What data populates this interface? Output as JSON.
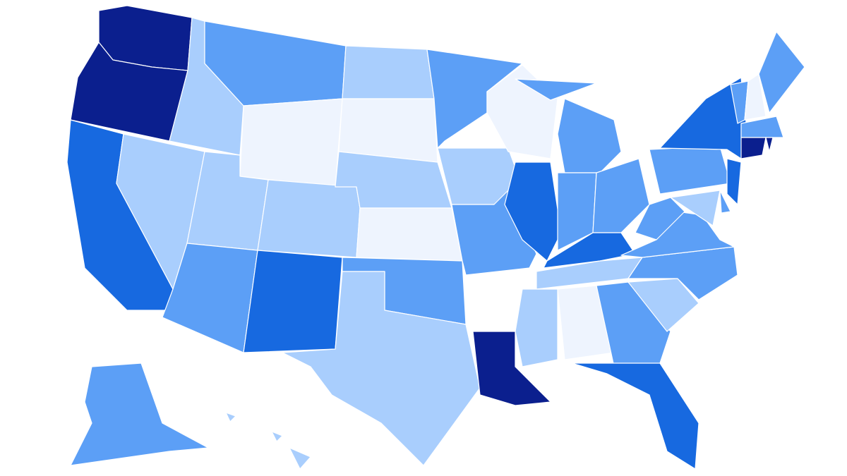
{
  "map": {
    "type": "choropleth",
    "stroke": "#ffffff",
    "regions": [
      {
        "color": "#0b1f8e"
      },
      {
        "color": "#0b1f8e"
      },
      {
        "color": "#1769e0"
      },
      {
        "color": "#a9cefd"
      },
      {
        "color": "#a9cefd"
      },
      {
        "color": "#5c9ff6"
      },
      {
        "color": "#eef4fe"
      },
      {
        "color": "#a9cefd"
      },
      {
        "color": "#a9cefd"
      },
      {
        "color": "#5c9ff6"
      },
      {
        "color": "#1769e0"
      },
      {
        "color": "#a9cefd"
      },
      {
        "color": "#eef4fe"
      },
      {
        "color": "#a9cefd"
      },
      {
        "color": "#eef4fe"
      },
      {
        "color": "#5c9ff6"
      },
      {
        "color": "#a9cefd"
      },
      {
        "color": "#5c9ff6"
      },
      {
        "color": "#a9cefd"
      },
      {
        "color": "#5c9ff6"
      },
      {
        "color": "#0b1f8e"
      },
      {
        "color": "#eef4fe"
      },
      {
        "color": "#1769e0"
      },
      {
        "color": "#5c9ff6"
      },
      {
        "color": "#5c9ff6"
      },
      {
        "color": "#5c9ff6"
      },
      {
        "color": "#5c9ff6"
      },
      {
        "color": "#1769e0"
      },
      {
        "color": "#a9cefd"
      },
      {
        "color": "#a9cefd"
      },
      {
        "color": "#eef4fe"
      },
      {
        "color": "#5c9ff6"
      },
      {
        "color": "#1769e0"
      },
      {
        "color": "#a9cefd"
      },
      {
        "color": "#5c9ff6"
      },
      {
        "color": "#5c9ff6"
      },
      {
        "color": "#5c9ff6"
      },
      {
        "color": "#5c9ff6"
      },
      {
        "color": "#1769e0"
      },
      {
        "color": "#1769e0"
      },
      {
        "color": "#a9cefd"
      },
      {
        "color": "#5c9ff6"
      },
      {
        "color": "#5c9ff6"
      },
      {
        "color": "#eef4fe"
      },
      {
        "color": "#5c9ff6"
      },
      {
        "color": "#5c9ff6"
      },
      {
        "color": "#0b1f8e"
      },
      {
        "color": "#0b1f8e"
      },
      {
        "color": "#5c9ff6"
      },
      {
        "color": "#a9cefd"
      },
      {
        "color": "#a9cefd"
      },
      {
        "color": "#a9cefd"
      }
    ]
  }
}
